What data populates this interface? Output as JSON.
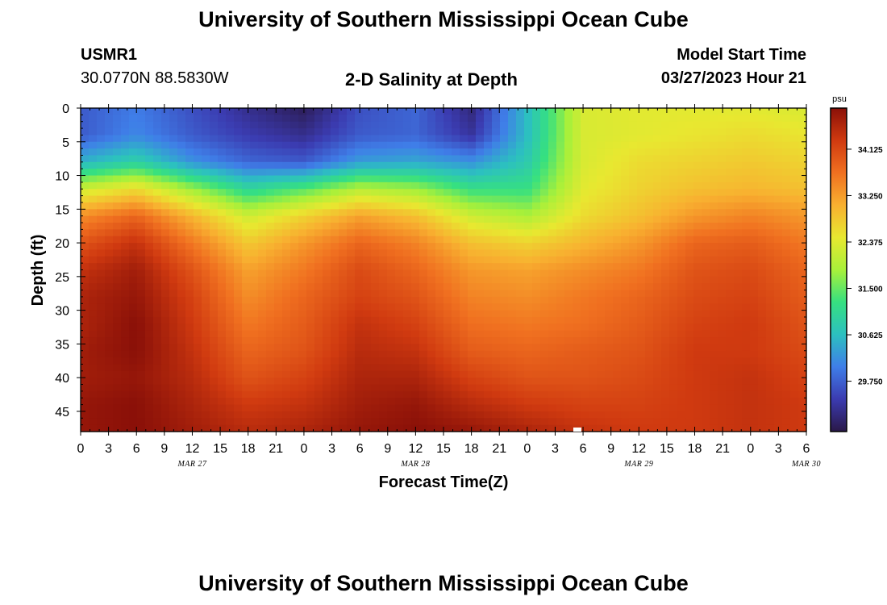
{
  "header": {
    "title": "University of Southern Mississippi Ocean Cube",
    "station_id": "USMR1",
    "coordinates": "30.0770N  88.5830W",
    "subtitle": "2-D Salinity at Depth",
    "model_start_label": "Model Start Time",
    "model_start_value": "03/27/2023 Hour 21"
  },
  "footer": {
    "title": "University of Southern Mississippi Ocean Cube"
  },
  "chart_data": {
    "type": "heatmap",
    "title": "2-D Salinity at Depth",
    "xlabel": "Forecast Time(Z)",
    "ylabel": "Depth (ft)",
    "x_tick_labels": [
      "0",
      "3",
      "6",
      "9",
      "12",
      "15",
      "18",
      "21",
      "0",
      "3",
      "6",
      "9",
      "12",
      "15",
      "18",
      "21",
      "0",
      "3",
      "6",
      "9",
      "12",
      "15",
      "18",
      "21",
      "0",
      "3",
      "6"
    ],
    "x_date_labels": [
      {
        "label": "MAR 27",
        "hour_index": 12
      },
      {
        "label": "MAR 28",
        "hour_index": 36
      },
      {
        "label": "MAR 29",
        "hour_index": 60
      },
      {
        "label": "MAR 30",
        "hour_index": 78
      }
    ],
    "xlim_hours": [
      0,
      78
    ],
    "y_ticks": [
      0,
      5,
      10,
      15,
      20,
      25,
      30,
      35,
      40,
      45
    ],
    "ylim": [
      0,
      48
    ],
    "y_inverted": true,
    "colorbar": {
      "unit": "psu",
      "range": [
        28.8,
        34.9
      ],
      "tick_values": [
        29.75,
        30.625,
        31.5,
        32.375,
        33.25,
        34.125
      ],
      "tick_labels": [
        "29.750",
        "30.625",
        "31.500",
        "32.375",
        "33.250",
        "34.125"
      ],
      "colors": [
        "#2a1848",
        "#3b3bb0",
        "#3f7ee8",
        "#2cc0c0",
        "#36e080",
        "#a8f03a",
        "#e8e830",
        "#f8b030",
        "#f07020",
        "#d03a10",
        "#8a1008"
      ]
    },
    "grid_hours": [
      0,
      6,
      12,
      18,
      24,
      30,
      36,
      42,
      48,
      54,
      60,
      66,
      72,
      78
    ],
    "grid_depths": [
      0,
      4,
      8,
      12,
      16,
      20,
      24,
      28,
      32,
      36,
      40,
      44,
      48
    ],
    "grid_values": [
      [
        29.7,
        30.0,
        29.6,
        29.2,
        28.9,
        29.6,
        29.8,
        29.1,
        30.6,
        32.3,
        32.4,
        32.4,
        32.4,
        32.3
      ],
      [
        29.7,
        30.1,
        29.7,
        29.4,
        29.2,
        29.7,
        29.8,
        29.3,
        30.6,
        32.3,
        32.4,
        32.5,
        32.6,
        32.5
      ],
      [
        30.5,
        30.9,
        30.2,
        29.8,
        29.7,
        30.3,
        30.4,
        30.2,
        30.8,
        32.3,
        32.6,
        32.7,
        32.8,
        32.7
      ],
      [
        32.2,
        32.6,
        31.8,
        31.0,
        31.4,
        32.0,
        31.8,
        31.2,
        31.2,
        32.4,
        32.7,
        32.9,
        33.0,
        32.9
      ],
      [
        33.4,
        33.8,
        33.0,
        32.2,
        32.7,
        33.2,
        32.9,
        32.2,
        31.9,
        32.6,
        32.9,
        33.3,
        33.5,
        33.3
      ],
      [
        34.0,
        34.4,
        33.6,
        32.8,
        33.3,
        33.8,
        33.5,
        32.9,
        32.7,
        33.0,
        33.3,
        33.8,
        33.9,
        33.6
      ],
      [
        34.4,
        34.7,
        34.0,
        33.2,
        33.6,
        34.1,
        33.8,
        33.3,
        33.2,
        33.4,
        33.6,
        34.0,
        34.1,
        33.8
      ],
      [
        34.6,
        34.8,
        34.2,
        33.4,
        33.8,
        34.2,
        34.0,
        33.5,
        33.4,
        33.6,
        33.8,
        34.1,
        34.2,
        33.9
      ],
      [
        34.6,
        34.9,
        34.3,
        33.6,
        33.9,
        34.4,
        34.2,
        33.7,
        33.6,
        33.7,
        33.9,
        34.2,
        34.3,
        34.0
      ],
      [
        34.7,
        34.9,
        34.4,
        33.8,
        34.0,
        34.5,
        34.4,
        33.9,
        33.8,
        33.9,
        34.0,
        34.3,
        34.3,
        34.1
      ],
      [
        34.7,
        34.8,
        34.5,
        34.0,
        34.2,
        34.6,
        34.6,
        34.2,
        34.0,
        34.0,
        34.1,
        34.3,
        34.4,
        34.2
      ],
      [
        34.8,
        34.9,
        34.6,
        34.3,
        34.4,
        34.7,
        34.8,
        34.5,
        34.3,
        34.2,
        34.2,
        34.3,
        34.4,
        34.3
      ],
      [
        34.8,
        34.9,
        34.7,
        34.5,
        34.6,
        34.8,
        34.9,
        34.8,
        34.6,
        34.4,
        34.3,
        34.3,
        34.4,
        34.3
      ]
    ]
  }
}
